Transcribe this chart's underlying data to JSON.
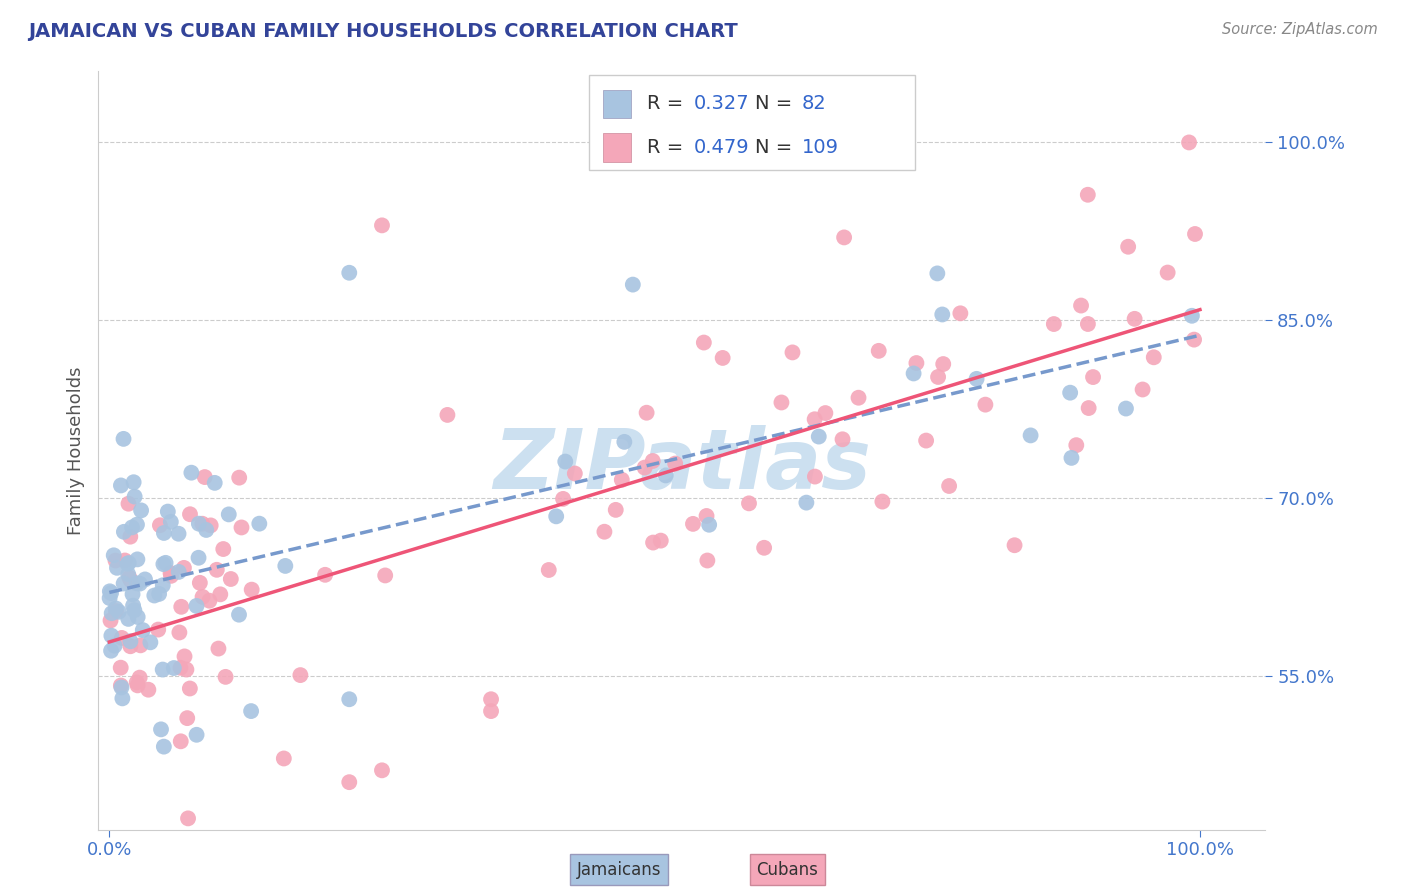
{
  "title": "JAMAICAN VS CUBAN FAMILY HOUSEHOLDS CORRELATION CHART",
  "source_text": "Source: ZipAtlas.com",
  "ylabel": "Family Households",
  "color_jamaican": "#a8c4e0",
  "color_cuban": "#f4a7b9",
  "color_line_jamaican": "#7799cc",
  "color_line_cuban": "#ee5577",
  "color_title": "#334499",
  "color_axis_labels": "#4477cc",
  "color_grid": "#cccccc",
  "color_legend_black": "#333333",
  "color_legend_blue": "#3366cc",
  "watermark_color": "#cce0f0",
  "ytick_vals": [
    0.55,
    0.7,
    0.85,
    1.0
  ],
  "ytick_labels": [
    "55.0%",
    "70.0%",
    "85.0%",
    "100.0%"
  ],
  "xlim": [
    -0.01,
    1.06
  ],
  "ylim": [
    0.42,
    1.06
  ],
  "r_jamaican": 0.327,
  "n_jamaican": 82,
  "r_cuban": 0.479,
  "n_cuban": 109
}
